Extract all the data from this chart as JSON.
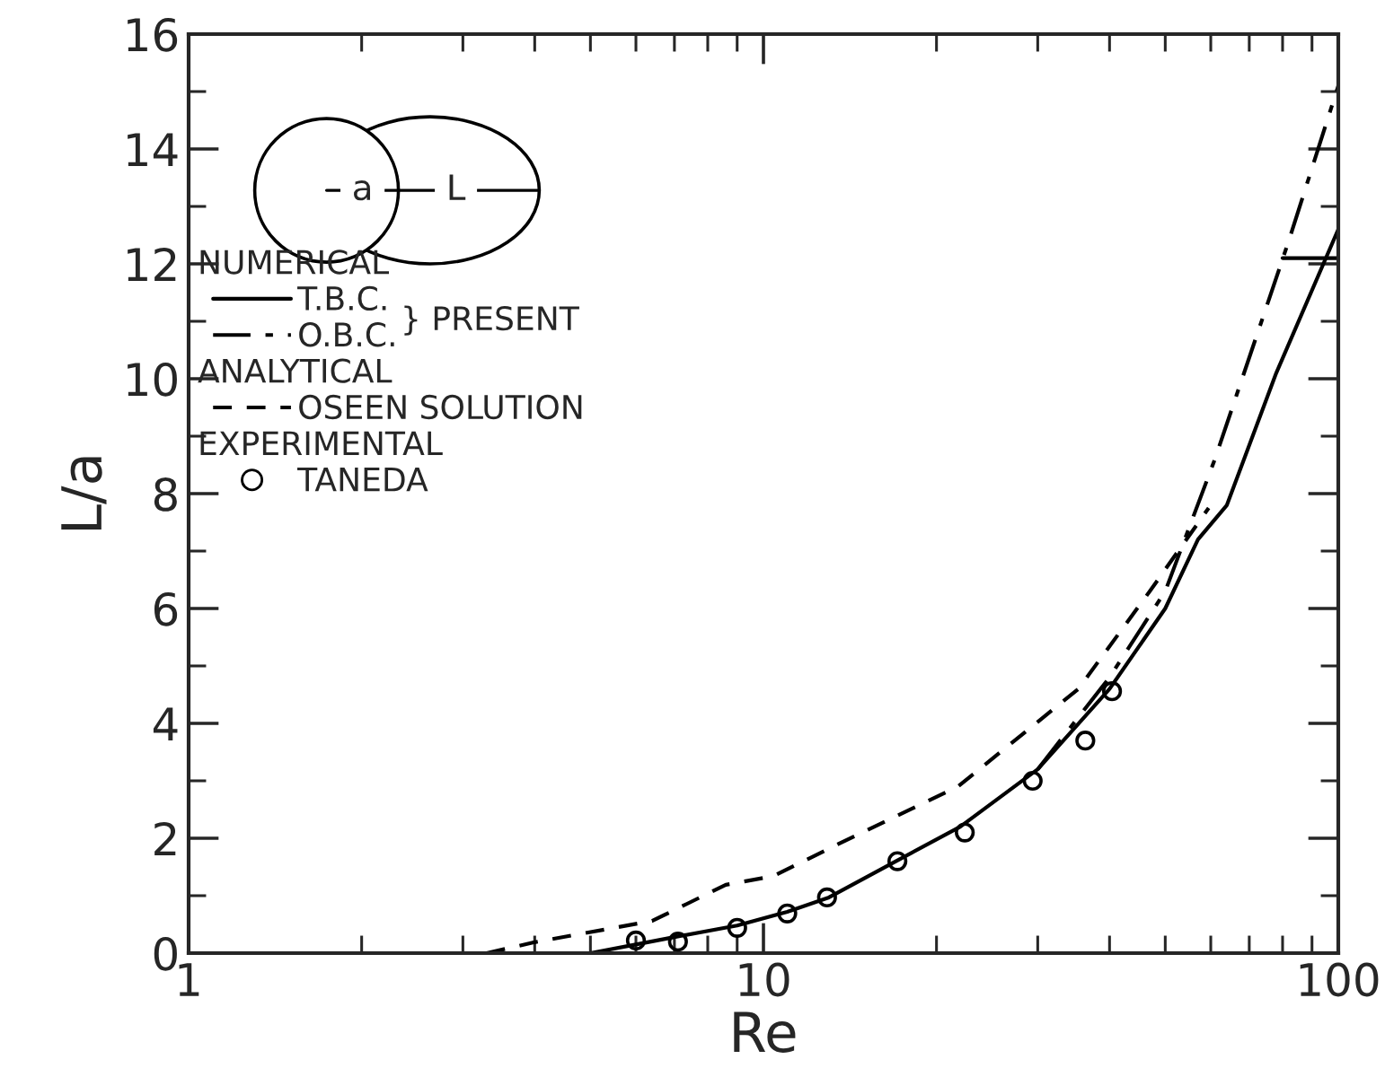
{
  "chart_data": {
    "type": "line",
    "xlabel": "Re",
    "ylabel": "L/a",
    "log": "x",
    "xlim": [
      1,
      100
    ],
    "xticks": [
      1,
      10,
      100
    ],
    "ylim": [
      0,
      16
    ],
    "yticks": [
      0,
      2,
      4,
      6,
      8,
      10,
      12,
      14,
      16
    ],
    "grid": false,
    "legend": "top left",
    "annotations": [
      "NUMERICAL",
      "ANALYTICAL",
      "EXPERIMENTAL",
      "} PRESENT",
      "a",
      "L"
    ],
    "series": [
      {
        "name": "T.B.C.",
        "color": "#000000",
        "line_style": "solid",
        "marker": "none",
        "x": [
          5,
          6,
          7,
          9,
          11,
          13,
          17,
          22,
          30,
          40,
          50,
          57,
          64,
          78,
          100
        ],
        "values": [
          0,
          0.15,
          0.28,
          0.48,
          0.72,
          0.97,
          1.6,
          2.2,
          3.2,
          4.6,
          6.0,
          7.2,
          7.8,
          10.1,
          12.6
        ]
      },
      {
        "name": "O.B.C.",
        "color": "#000000",
        "line_style": "dashdot",
        "marker": "none",
        "x": [
          30,
          40,
          50,
          61,
          82,
          100
        ],
        "values": [
          3.2,
          4.8,
          6.3,
          8.6,
          12.4,
          15.1
        ]
      },
      {
        "name": "OSEEN SOLUTION",
        "color": "#000000",
        "line_style": "dashed",
        "marker": "none",
        "x": [
          3.3,
          4.0,
          6.4,
          8.6,
          10.4,
          13.5,
          21.8,
          35.3,
          47,
          59.5
        ],
        "values": [
          0,
          0.19,
          0.56,
          1.19,
          1.34,
          1.9,
          2.9,
          4.6,
          6.3,
          7.75
        ]
      },
      {
        "name": "TANEDA",
        "type": "scatter",
        "color": "#000000",
        "marker": "circle",
        "x": [
          6.0,
          7.1,
          9.0,
          11.0,
          12.9,
          17.1,
          22.4,
          29.4,
          36.3,
          40.4
        ],
        "values": [
          0.22,
          0.2,
          0.44,
          0.69,
          0.97,
          1.6,
          2.1,
          3.0,
          3.7,
          4.56
        ]
      },
      {
        "color": "#000000",
        "line_style": "solid",
        "marker": "none",
        "x": [
          80,
          100
        ],
        "values": [
          12.1,
          12.1
        ]
      }
    ]
  }
}
